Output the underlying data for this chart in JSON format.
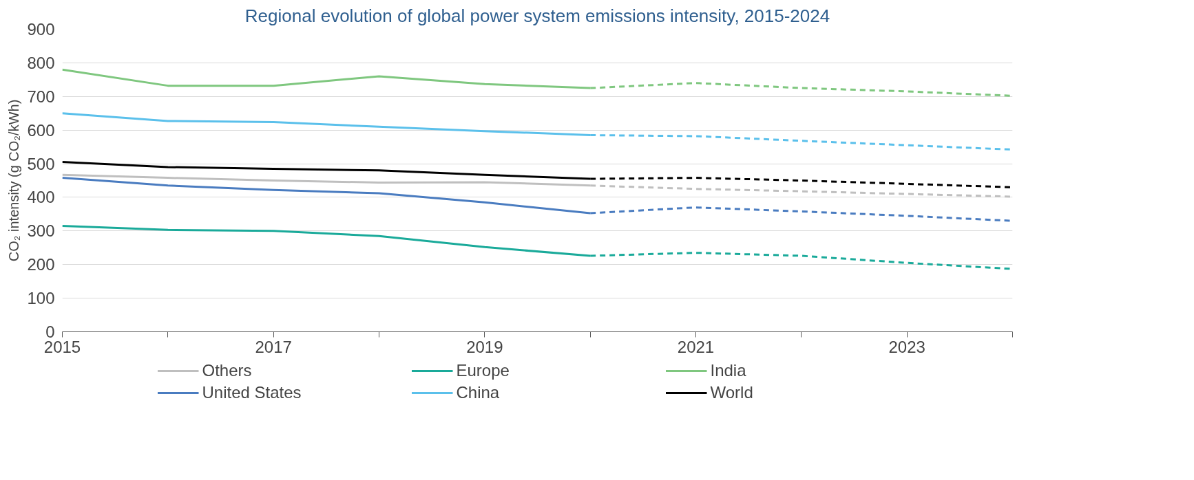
{
  "chart_data": {
    "type": "line",
    "title": "Regional evolution of global power system emissions intensity, 2015-2024",
    "ylabel": "CO₂ intensity (g CO₂/kWh)",
    "x": [
      2015,
      2016,
      2017,
      2018,
      2019,
      2020
    ],
    "xlim": [
      2015,
      2024
    ],
    "xticks": [
      2015,
      {
        "value": 2016,
        "label": null
      },
      2017,
      {
        "value": 2018,
        "label": null
      },
      2019,
      {
        "value": 2020,
        "label": null
      },
      2021,
      {
        "value": 2022,
        "label": null
      },
      2023,
      {
        "value": 2024,
        "label": null
      }
    ],
    "ylim": [
      0,
      900
    ],
    "yticks": [
      0,
      100,
      200,
      300,
      400,
      500,
      600,
      700,
      800,
      900
    ],
    "grid": "y",
    "legend": "bottom",
    "line_style": "solid",
    "series": [
      {
        "name": "Others",
        "color": "#bfbfbf",
        "values": [
          467,
          458,
          450,
          444,
          445,
          435
        ]
      },
      {
        "name": "United States",
        "color": "#4a7cc0",
        "values": [
          458,
          435,
          422,
          412,
          385,
          353
        ]
      },
      {
        "name": "Europe",
        "color": "#1aaa9a",
        "values": [
          315,
          303,
          300,
          285,
          252,
          226
        ]
      },
      {
        "name": "China",
        "color": "#5bc0eb",
        "values": [
          650,
          627,
          624,
          610,
          597,
          585
        ]
      },
      {
        "name": "India",
        "color": "#7fc77f",
        "values": [
          780,
          732,
          732,
          760,
          737,
          725
        ]
      },
      {
        "name": "World",
        "color": "#000000",
        "values": [
          505,
          490,
          485,
          480,
          467,
          455
        ]
      },
      {
        "color": "#bfbfbf",
        "line_style": "dashed",
        "x": [
          2020,
          2021,
          2022,
          2023,
          2024
        ],
        "values": [
          435,
          425,
          418,
          410,
          402
        ]
      },
      {
        "color": "#4a7cc0",
        "line_style": "dashed",
        "x": [
          2020,
          2021,
          2022,
          2023,
          2024
        ],
        "values": [
          353,
          370,
          358,
          345,
          330
        ]
      },
      {
        "color": "#1aaa9a",
        "line_style": "dashed",
        "x": [
          2020,
          2021,
          2022,
          2023,
          2024
        ],
        "values": [
          226,
          235,
          226,
          205,
          187
        ]
      },
      {
        "color": "#5bc0eb",
        "line_style": "dashed",
        "x": [
          2020,
          2021,
          2022,
          2023,
          2024
        ],
        "values": [
          585,
          582,
          568,
          555,
          542
        ]
      },
      {
        "color": "#7fc77f",
        "line_style": "dashed",
        "x": [
          2020,
          2021,
          2022,
          2023,
          2024
        ],
        "values": [
          725,
          740,
          725,
          715,
          702
        ]
      },
      {
        "color": "#000000",
        "line_style": "dashed",
        "x": [
          2020,
          2021,
          2022,
          2023,
          2024
        ],
        "values": [
          455,
          458,
          450,
          440,
          430
        ]
      }
    ]
  }
}
